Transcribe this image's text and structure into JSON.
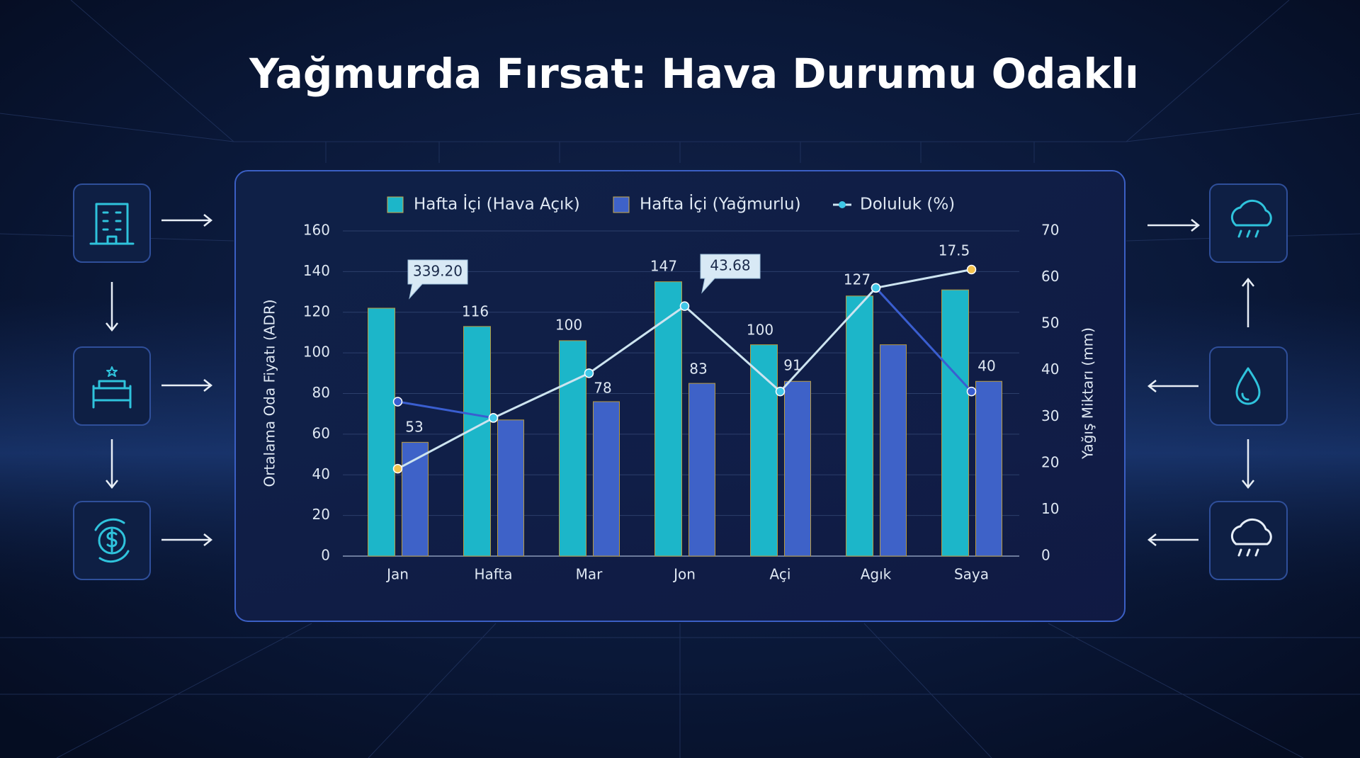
{
  "chart_data": {
    "type": "bar",
    "title": "Yağmurda Fırsat: Hava Durumu Odaklı",
    "y_label": "Ortalama Oda Fiyatı (ADR)",
    "y2_label": "Yağış Miktarı (mm)",
    "categories": [
      "Jan",
      "Hafta",
      "Mar",
      "Jon",
      "Açi",
      "Agık",
      "Saya"
    ],
    "series": [
      {
        "name": "Hafta İçi (Hava Açık)",
        "type": "bar",
        "color": "#1cb6c9",
        "values": [
          122,
          113,
          106,
          135,
          104,
          128,
          131
        ]
      },
      {
        "name": "Hafta İçi (Yağmurlu)",
        "type": "bar",
        "color": "#3e62c8",
        "values": [
          56,
          67,
          76,
          85,
          86,
          104,
          86
        ]
      },
      {
        "name": "Doluluk (%)",
        "type": "line",
        "color": "#cde4f0",
        "values": [
          43,
          68,
          90,
          123,
          81,
          132,
          141
        ]
      },
      {
        "type": "line",
        "color": "#3a5ed0",
        "values": [
          76,
          68,
          null,
          null,
          null,
          132,
          81
        ]
      }
    ],
    "annotations": [
      "339.20",
      "53",
      "116",
      "100",
      "78",
      "147",
      "43.68",
      "83",
      "100",
      "91",
      "127",
      "17.5",
      "40"
    ],
    "ylim": [
      0,
      160
    ],
    "yticks": [
      0,
      20,
      40,
      60,
      80,
      100,
      120,
      140,
      160
    ],
    "y2lim": [
      0,
      70
    ],
    "y2ticks": [
      0,
      10,
      20,
      30,
      40,
      50,
      60,
      70
    ],
    "grid": true
  }
}
